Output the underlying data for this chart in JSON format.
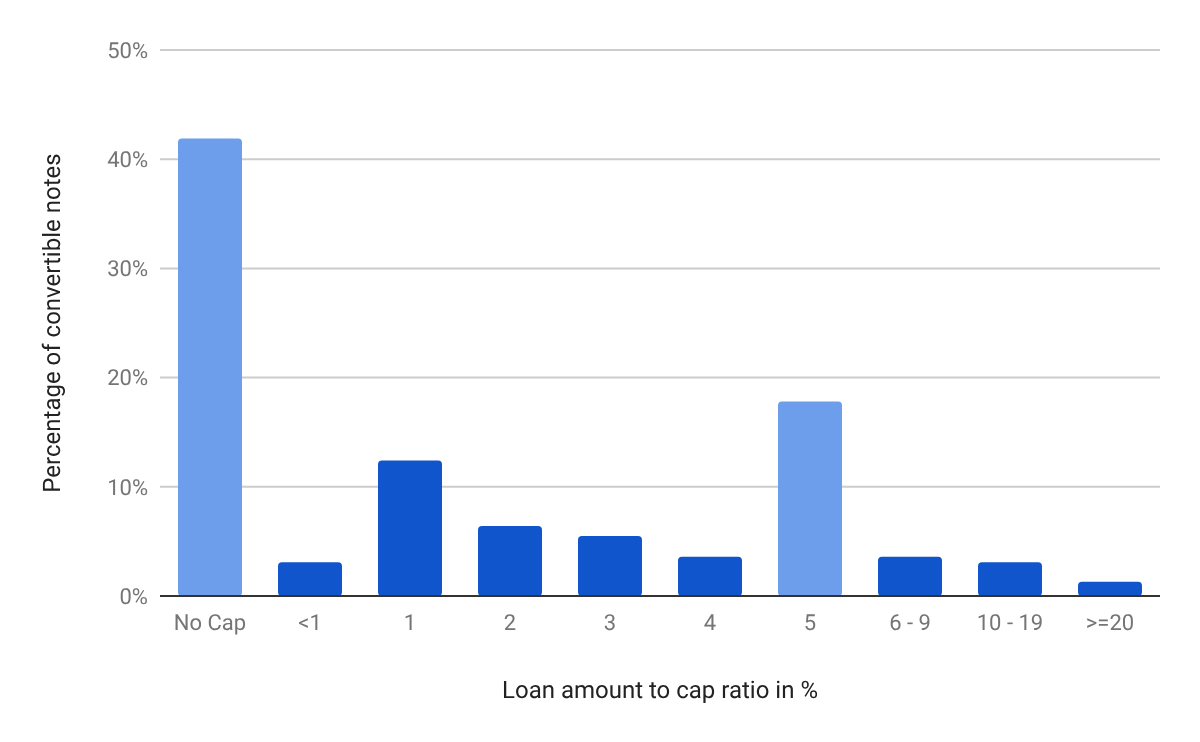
{
  "chart_data": {
    "type": "bar",
    "xlabel": "Loan amount to cap ratio in %",
    "ylabel": "Percentage of convertible notes",
    "categories": [
      "No Cap",
      "<1",
      "1",
      "2",
      "3",
      "4",
      "5",
      "6 - 9",
      "10 - 19",
      ">=20"
    ],
    "values": [
      41.9,
      3.1,
      12.4,
      6.4,
      5.5,
      3.6,
      17.8,
      3.6,
      3.1,
      1.3
    ],
    "colors": [
      "#6d9eeb",
      "#1155cc",
      "#1155cc",
      "#1155cc",
      "#1155cc",
      "#1155cc",
      "#6d9eeb",
      "#1155cc",
      "#1155cc",
      "#1155cc"
    ],
    "ylim": [
      0,
      50
    ],
    "yticks": [
      {
        "value": 0,
        "label": "0%"
      },
      {
        "value": 10,
        "label": "10%"
      },
      {
        "value": 20,
        "label": "20%"
      },
      {
        "value": 30,
        "label": "30%"
      },
      {
        "value": 40,
        "label": "40%"
      },
      {
        "value": 50,
        "label": "50%"
      }
    ],
    "grid": "y"
  }
}
